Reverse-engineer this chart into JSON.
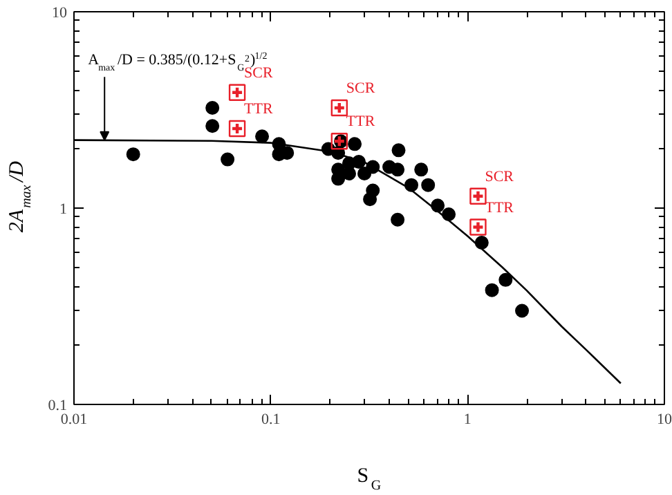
{
  "chart_data": {
    "type": "scatter",
    "xlabel": "S$_{G}$",
    "ylabel": "2A$_{max}$/D",
    "log": "xy",
    "xlim": [
      0.01,
      10
    ],
    "ylim": [
      0.1,
      10
    ],
    "xticks": [
      0.01,
      0.1,
      1,
      10
    ],
    "yticks": [
      0.1,
      1,
      10
    ],
    "grid": false,
    "series": [
      {
        "color": "#000000",
        "marker": "circle",
        "x": [
          0.02,
          0.0505,
          0.0505,
          0.0603,
          0.0903,
          0.11,
          0.11,
          0.121,
          0.196,
          0.22,
          0.22,
          0.22,
          0.227,
          0.25,
          0.25,
          0.267,
          0.28,
          0.299,
          0.33,
          0.33,
          0.319,
          0.4,
          0.441,
          0.446,
          0.441,
          0.518,
          0.581,
          0.63,
          0.705,
          0.802,
          1.18,
          1.56,
          1.33,
          1.89
        ],
        "values": [
          1.88,
          3.24,
          2.62,
          1.77,
          2.32,
          2.12,
          1.88,
          1.91,
          2.0,
          1.91,
          1.57,
          1.41,
          2.19,
          1.69,
          1.5,
          2.12,
          1.72,
          1.5,
          1.62,
          1.23,
          1.11,
          1.62,
          1.57,
          1.97,
          0.873,
          1.31,
          1.57,
          1.31,
          1.03,
          0.93,
          0.667,
          0.431,
          0.382,
          0.3
        ]
      },
      {
        "color": "#e8202a",
        "marker": "square",
        "x": [
          0.0675,
          0.0675,
          0.223,
          0.223,
          1.13,
          1.13
        ],
        "values": [
          3.88,
          2.54,
          3.24,
          2.19,
          1.15,
          0.8
        ]
      },
      {
        "type": "line",
        "color": "#000000",
        "marker": "none",
        "line_style": "solid",
        "x": [
          0.01,
          0.05,
          0.1,
          0.2,
          0.3,
          0.5,
          0.7,
          1,
          1.5,
          2,
          3,
          4,
          6
        ],
        "values": [
          2.22,
          2.2,
          2.15,
          1.94,
          1.71,
          1.27,
          0.97,
          0.72,
          0.5,
          0.38,
          0.25,
          0.19,
          0.128
        ]
      }
    ],
    "annotations": [
      {
        "text": "A$_{max}$/D = 0.385/(0.12+S$_{G}$$^{2}$)$^{1/2}$",
        "x": 0.0143,
        "y": 2.22
      },
      {
        "text": "SCR",
        "x": 0.0675,
        "y": 3.88
      },
      {
        "text": "TTR",
        "x": 0.0675,
        "y": 2.54
      },
      {
        "text": "SCR",
        "x": 0.223,
        "y": 3.24
      },
      {
        "text": "TTR",
        "x": 0.223,
        "y": 2.19
      },
      {
        "text": "SCR",
        "x": 1.13,
        "y": 1.15
      },
      {
        "text": "TTR",
        "x": 1.13,
        "y": 0.8
      }
    ]
  }
}
